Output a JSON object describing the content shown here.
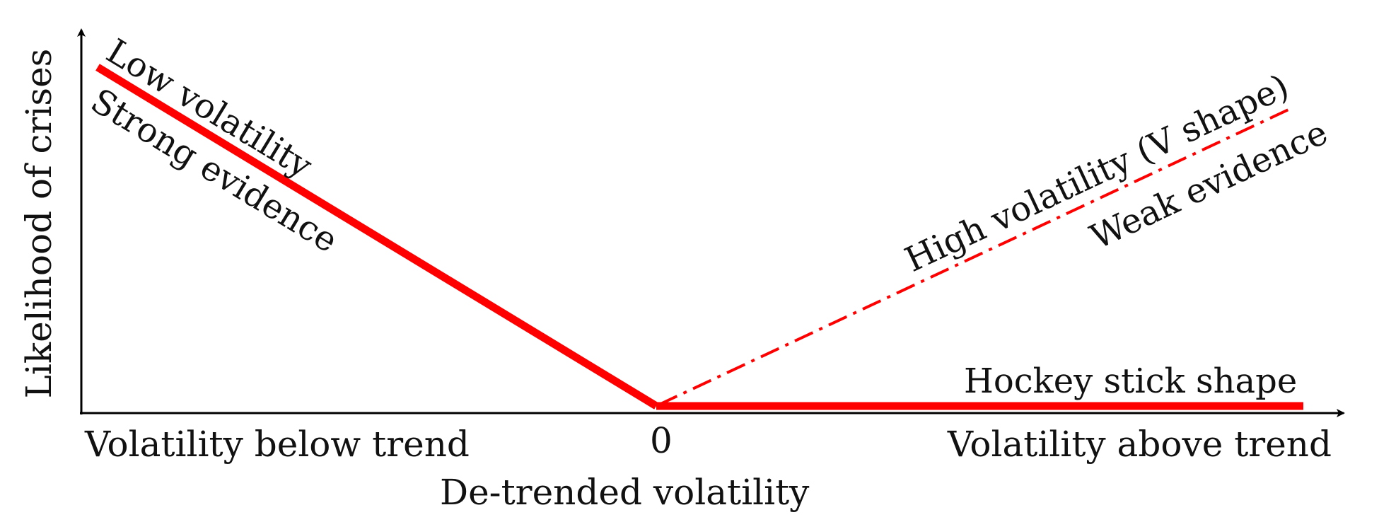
{
  "diagram": {
    "y_axis_label": "Likelihood of crises",
    "x_axis_label": "De-trended volatility",
    "x_left_label": "Volatility below trend",
    "x_zero_label": "0",
    "x_right_label": "Volatility above trend",
    "low_vol_line1": "Low volatility",
    "low_vol_line2": "Strong evidence",
    "high_vol_line1": "High volatility (V shape)",
    "high_vol_line2": "Weak evidence",
    "hockey_label": "Hockey stick shape",
    "line_color": "#ff0000",
    "axis_color": "#000000",
    "solid_line_style": "solid",
    "v_line_style": "dash-dot"
  }
}
